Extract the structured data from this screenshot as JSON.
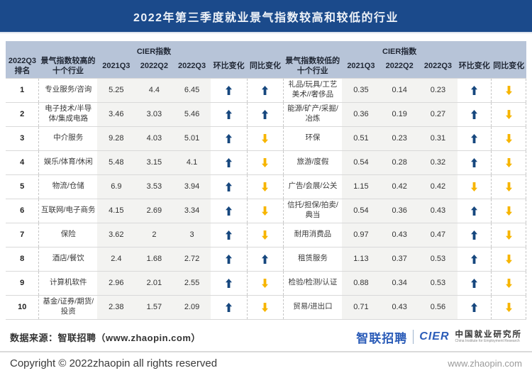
{
  "title": "2022年第三季度就业景气指数较高和较低的行业",
  "colors": {
    "banner": "#1b4a8b",
    "header_bg": "#b7c4d8",
    "up_arrow": "#16477e",
    "down_arrow": "#f7b500"
  },
  "table": {
    "rank_header_line1": "2022Q3",
    "rank_header_line2": "排名",
    "high_group_header": "景气指数较高的\n十个行业",
    "low_group_header": "景气指数较低的\n十个行业",
    "cier_header": "CIER指数",
    "quarters": [
      "2021Q3",
      "2022Q2",
      "2022Q3"
    ],
    "mom_header": "环比变化",
    "yoy_header": "同比变化",
    "rows": [
      {
        "rank": "1",
        "high": {
          "name": "专业服务/咨询",
          "values": [
            "5.25",
            "4.4",
            "6.45"
          ],
          "mom": "up",
          "yoy": "up"
        },
        "low": {
          "name": "礼品/玩具/工艺美术//奢侈品",
          "values": [
            "0.35",
            "0.14",
            "0.23"
          ],
          "mom": "up",
          "yoy": "down"
        }
      },
      {
        "rank": "2",
        "high": {
          "name": "电子技术/半导体/集成电路",
          "values": [
            "3.46",
            "3.03",
            "5.46"
          ],
          "mom": "up",
          "yoy": "up"
        },
        "low": {
          "name": "能源/矿产/采掘/冶炼",
          "values": [
            "0.36",
            "0.19",
            "0.27"
          ],
          "mom": "up",
          "yoy": "down"
        }
      },
      {
        "rank": "3",
        "high": {
          "name": "中介服务",
          "values": [
            "9.28",
            "4.03",
            "5.01"
          ],
          "mom": "up",
          "yoy": "down"
        },
        "low": {
          "name": "环保",
          "values": [
            "0.51",
            "0.23",
            "0.31"
          ],
          "mom": "up",
          "yoy": "down"
        }
      },
      {
        "rank": "4",
        "high": {
          "name": "娱乐/体育/休闲",
          "values": [
            "5.48",
            "3.15",
            "4.1"
          ],
          "mom": "up",
          "yoy": "down"
        },
        "low": {
          "name": "旅游/度假",
          "values": [
            "0.54",
            "0.28",
            "0.32"
          ],
          "mom": "up",
          "yoy": "down"
        }
      },
      {
        "rank": "5",
        "high": {
          "name": "物流/仓储",
          "values": [
            "6.9",
            "3.53",
            "3.94"
          ],
          "mom": "up",
          "yoy": "down"
        },
        "low": {
          "name": "广告/会展/公关",
          "values": [
            "1.15",
            "0.42",
            "0.42"
          ],
          "mom": "down",
          "yoy": "down"
        }
      },
      {
        "rank": "6",
        "high": {
          "name": "互联网/电子商务",
          "values": [
            "4.15",
            "2.69",
            "3.34"
          ],
          "mom": "up",
          "yoy": "down"
        },
        "low": {
          "name": "信托/担保/拍卖/典当",
          "values": [
            "0.54",
            "0.36",
            "0.43"
          ],
          "mom": "up",
          "yoy": "down"
        }
      },
      {
        "rank": "7",
        "high": {
          "name": "保险",
          "values": [
            "3.62",
            "2",
            "3"
          ],
          "mom": "up",
          "yoy": "down"
        },
        "low": {
          "name": "耐用消费品",
          "values": [
            "0.97",
            "0.43",
            "0.47"
          ],
          "mom": "up",
          "yoy": "down"
        }
      },
      {
        "rank": "8",
        "high": {
          "name": "酒店/餐饮",
          "values": [
            "2.4",
            "1.68",
            "2.72"
          ],
          "mom": "up",
          "yoy": "up"
        },
        "low": {
          "name": "租赁服务",
          "values": [
            "1.13",
            "0.37",
            "0.53"
          ],
          "mom": "up",
          "yoy": "down"
        }
      },
      {
        "rank": "9",
        "high": {
          "name": "计算机软件",
          "values": [
            "2.96",
            "2.01",
            "2.55"
          ],
          "mom": "up",
          "yoy": "down"
        },
        "low": {
          "name": "检验/检测/认证",
          "values": [
            "0.88",
            "0.34",
            "0.53"
          ],
          "mom": "up",
          "yoy": "down"
        }
      },
      {
        "rank": "10",
        "high": {
          "name": "基金/证券/期货/投资",
          "values": [
            "2.38",
            "1.57",
            "2.09"
          ],
          "mom": "up",
          "yoy": "down"
        },
        "low": {
          "name": "贸易/进出口",
          "values": [
            "0.71",
            "0.43",
            "0.56"
          ],
          "mom": "up",
          "yoy": "down"
        }
      }
    ]
  },
  "footer": {
    "source": "数据来源：智联招聘（www.zhaopin.com）",
    "copyright": "Copyright © 2022zhaopin all rights reserved",
    "website": "www.zhaopin.com",
    "logo_zhaopin": "智联招聘",
    "logo_cier": "CIER",
    "logo_cier_cn": "中国就业研究所",
    "logo_cier_en": "China Institute for Employment Research"
  }
}
